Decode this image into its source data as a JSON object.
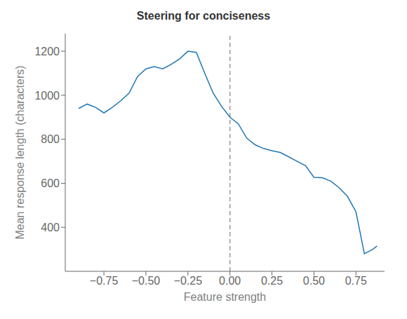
{
  "chart_data": {
    "type": "line",
    "title": "Steering for conciseness",
    "xlabel": "Feature strength",
    "ylabel": "Mean response length (characters)",
    "x": [
      -0.9,
      -0.85,
      -0.8,
      -0.75,
      -0.7,
      -0.65,
      -0.6,
      -0.55,
      -0.5,
      -0.45,
      -0.4,
      -0.35,
      -0.3,
      -0.25,
      -0.2,
      -0.15,
      -0.1,
      -0.05,
      0.0,
      0.05,
      0.1,
      0.15,
      0.2,
      0.25,
      0.3,
      0.35,
      0.4,
      0.45,
      0.5,
      0.55,
      0.6,
      0.65,
      0.7,
      0.75,
      0.8,
      0.85,
      0.875
    ],
    "values": [
      940,
      960,
      945,
      920,
      945,
      975,
      1010,
      1085,
      1120,
      1130,
      1120,
      1140,
      1165,
      1200,
      1195,
      1100,
      1010,
      950,
      900,
      870,
      805,
      775,
      758,
      748,
      740,
      720,
      700,
      680,
      627,
      625,
      610,
      580,
      540,
      470,
      280,
      300,
      315
    ],
    "color": "#1f77b4",
    "xlim": [
      -0.98,
      0.92
    ],
    "ylim": [
      200,
      1280
    ],
    "xticks": [
      {
        "value": -0.75,
        "label": "−0.75"
      },
      {
        "value": -0.5,
        "label": "−0.50"
      },
      {
        "value": -0.25,
        "label": "−0.25"
      },
      {
        "value": 0.0,
        "label": "0.00"
      },
      {
        "value": 0.25,
        "label": "0.25"
      },
      {
        "value": 0.5,
        "label": "0.50"
      },
      {
        "value": 0.75,
        "label": "0.75"
      }
    ],
    "yticks": [
      400,
      600,
      800,
      1000,
      1200
    ],
    "vlines": [
      {
        "x": 0.0,
        "color": "#999999",
        "line_style": "dashed"
      }
    ],
    "grid": false
  }
}
